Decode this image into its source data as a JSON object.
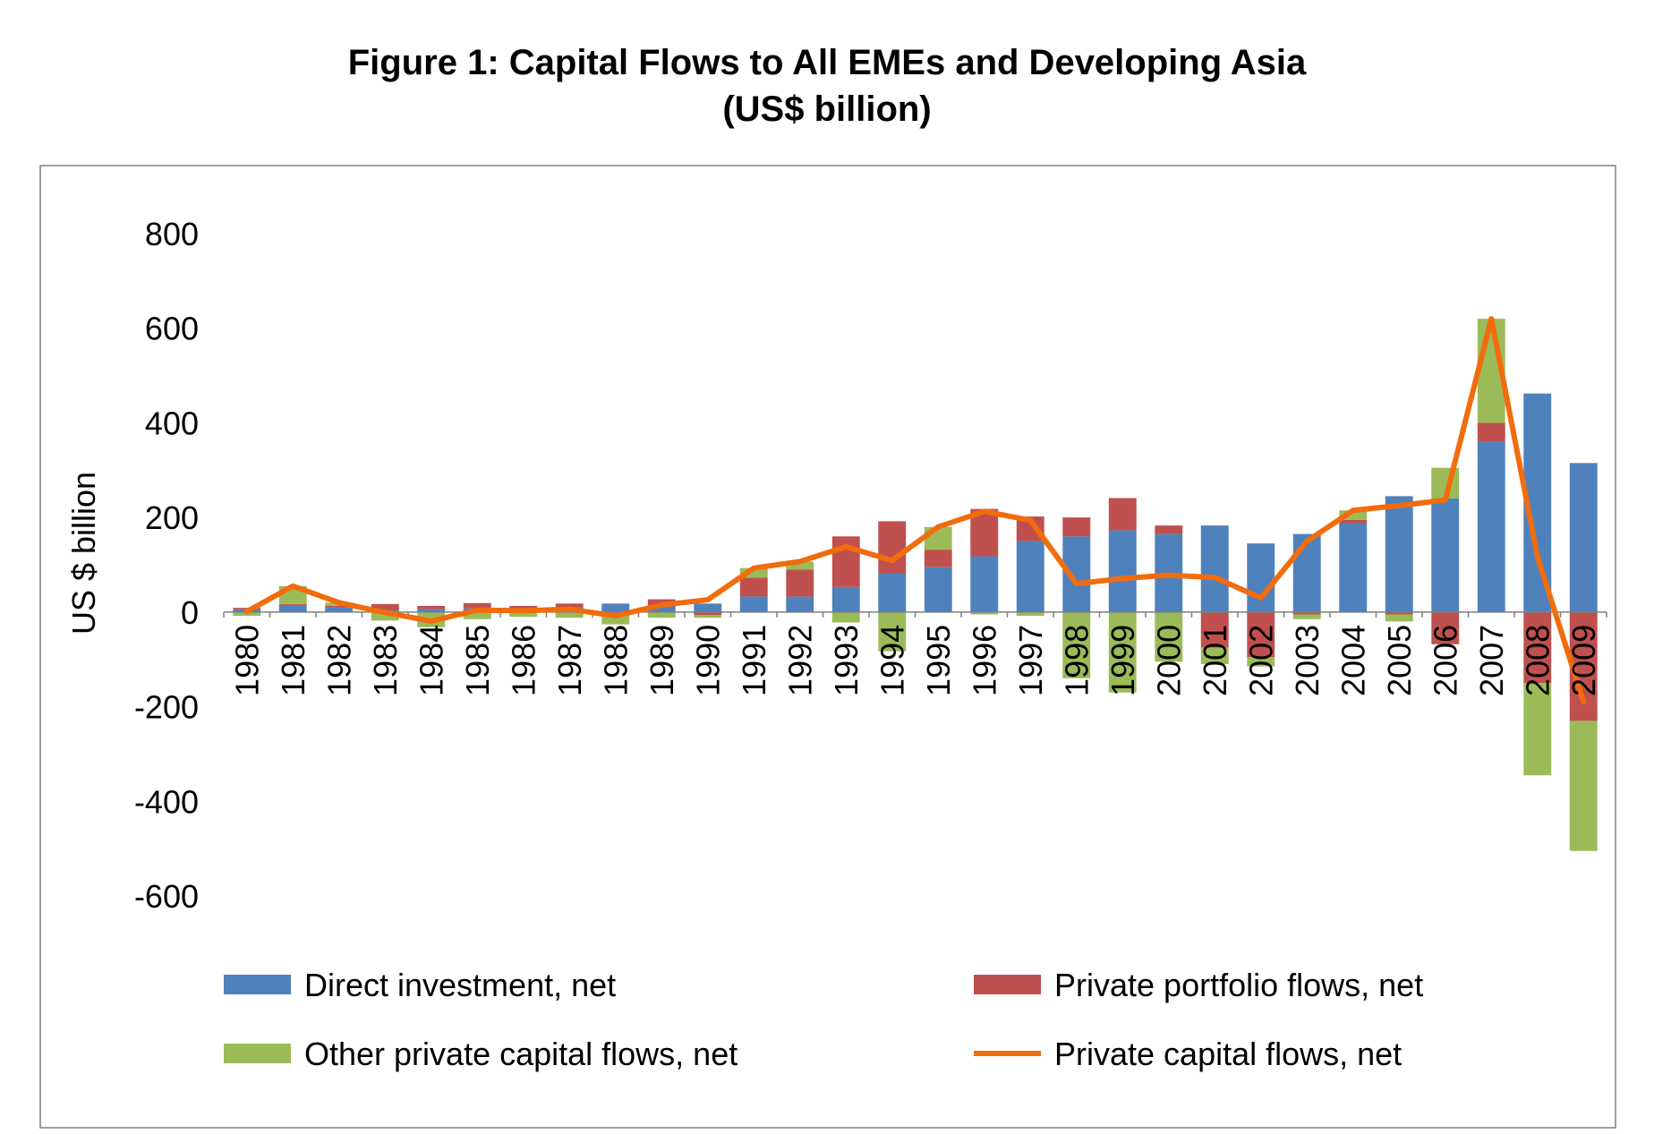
{
  "title_line1": "Figure 1: Capital Flows to All EMEs and Developing Asia",
  "title_line2": "(US$ billion)",
  "chart_data": {
    "type": "bar",
    "stacked": true,
    "categories": [
      "1980",
      "1981",
      "1982",
      "1983",
      "1984",
      "1985",
      "1986",
      "1987",
      "1988",
      "1989",
      "1990",
      "1991",
      "1992",
      "1993",
      "1994",
      "1995",
      "1996",
      "1997",
      "1998",
      "1999",
      "2000",
      "2001",
      "2002",
      "2003",
      "2004",
      "2005",
      "2006",
      "2007",
      "2008",
      "2009"
    ],
    "series": [
      {
        "name": "Direct investment, net",
        "kind": "bar",
        "color": "#4f81bd",
        "values": [
          6,
          15,
          10,
          3,
          6,
          8,
          8,
          10,
          18,
          12,
          18,
          33,
          33,
          53,
          82,
          95,
          118,
          150,
          160,
          173,
          165,
          183,
          145,
          165,
          188,
          245,
          240,
          360,
          462,
          315
        ]
      },
      {
        "name": "Private portfolio flows, net",
        "kind": "bar",
        "color": "#c0504d",
        "values": [
          3,
          2,
          3,
          14,
          7,
          11,
          5,
          8,
          -6,
          15,
          -6,
          40,
          57,
          107,
          110,
          37,
          100,
          52,
          40,
          68,
          18,
          -75,
          -95,
          -5,
          7,
          -5,
          -68,
          40,
          -150,
          -230
        ]
      },
      {
        "name": "Other private capital flows, net",
        "kind": "bar",
        "color": "#9bbb59",
        "values": [
          -8,
          38,
          7,
          -18,
          -32,
          -15,
          -10,
          -12,
          -20,
          -12,
          -6,
          20,
          17,
          -22,
          -83,
          48,
          -5,
          -8,
          -140,
          -170,
          -105,
          -35,
          -20,
          -10,
          20,
          -15,
          65,
          220,
          -195,
          -275
        ]
      },
      {
        "name": "Private capital flows, net",
        "kind": "line",
        "color": "#f26c0d",
        "values": [
          1,
          55,
          20,
          -1,
          -19,
          4,
          3,
          6,
          -8,
          15,
          26,
          93,
          107,
          138,
          109,
          180,
          213,
          194,
          60,
          71,
          78,
          73,
          30,
          150,
          215,
          225,
          237,
          620,
          117,
          -190
        ]
      }
    ],
    "ylabel": "US $ billion",
    "ylim": [
      -600,
      800
    ],
    "yticks": [
      800,
      600,
      400,
      200,
      0,
      -200,
      -400,
      -600
    ],
    "grid": false,
    "legend_position": "bottom"
  }
}
